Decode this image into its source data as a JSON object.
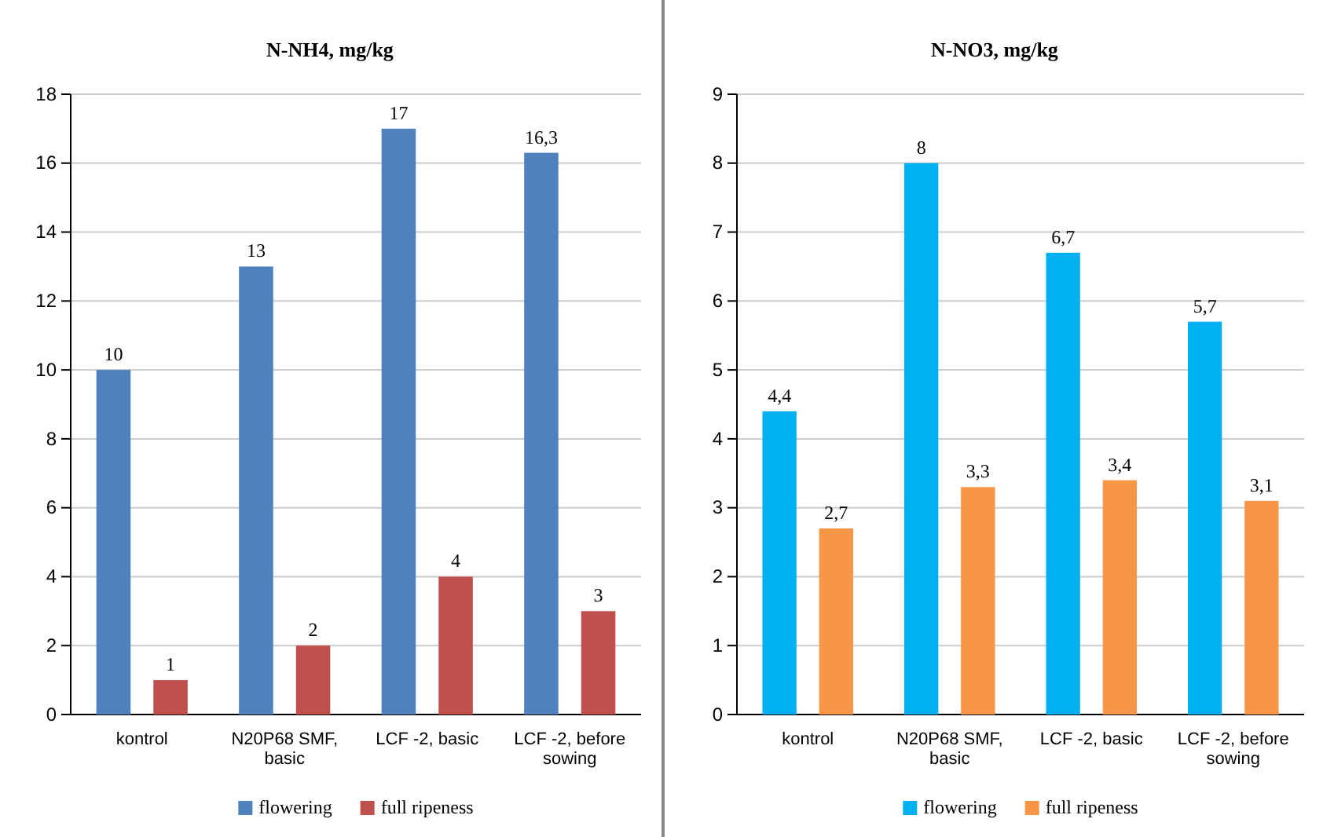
{
  "chart_data": [
    {
      "type": "bar",
      "title": "N-NH4, mg/kg",
      "categories": [
        "kontrol",
        "N20P68 SMF, basic",
        "LCF -2, basic",
        "LCF -2, before sowing"
      ],
      "series": [
        {
          "name": "flowering",
          "color": "#4f81bd",
          "values": [
            10,
            13,
            17,
            16.3
          ],
          "value_labels": [
            "10",
            "13",
            "17",
            "16,3"
          ]
        },
        {
          "name": "full ripeness",
          "color": "#c0504d",
          "values": [
            1,
            2,
            4,
            3
          ],
          "value_labels": [
            "1",
            "2",
            "4",
            "3"
          ]
        }
      ],
      "ylim": [
        0,
        18
      ],
      "yticks": [
        0,
        2,
        4,
        6,
        8,
        10,
        12,
        14,
        16,
        18
      ],
      "grid": "y",
      "legend": "bottom"
    },
    {
      "type": "bar",
      "title": "N-NO3, mg/kg",
      "categories": [
        "kontrol",
        "N20P68 SMF, basic",
        "LCF -2, basic",
        "LCF -2, before sowing"
      ],
      "series": [
        {
          "name": "flowering",
          "color": "#00b0f0",
          "values": [
            4.4,
            8,
            6.7,
            5.7
          ],
          "value_labels": [
            "4,4",
            "8",
            "6,7",
            "5,7"
          ]
        },
        {
          "name": "full ripeness",
          "color": "#f79646",
          "values": [
            2.7,
            3.3,
            3.4,
            3.1
          ],
          "value_labels": [
            "2,7",
            "3,3",
            "3,4",
            "3,1"
          ]
        }
      ],
      "ylim": [
        0,
        9
      ],
      "yticks": [
        0,
        1,
        2,
        3,
        4,
        5,
        6,
        7,
        8,
        9
      ],
      "grid": "y",
      "legend": "bottom"
    }
  ]
}
